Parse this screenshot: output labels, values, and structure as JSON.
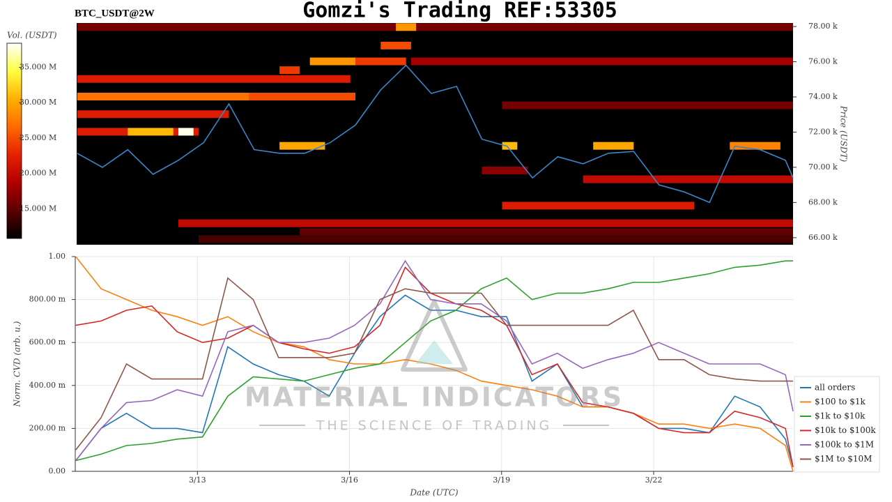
{
  "title": "Gomzi's Trading REF:53305",
  "watermark": {
    "title": "MATERIAL INDICATORS",
    "subtitle": "THE SCIENCE OF TRADING"
  },
  "chart_data": [
    {
      "type": "heatmap",
      "title": "BTC_USDT@2W",
      "ylabel": "Price (USDT)",
      "colorbar_label": "Vol. (USDT)",
      "background": "#000000",
      "xlim": [
        10.59,
        24.75
      ],
      "ylim": [
        65600,
        78200
      ],
      "yticks": [
        {
          "value": 66000,
          "label": "66.00 k"
        },
        {
          "value": 68000,
          "label": "68.00 k"
        },
        {
          "value": 70000,
          "label": "70.00 k"
        },
        {
          "value": 72000,
          "label": "72.00 k"
        },
        {
          "value": 74000,
          "label": "74.00 k"
        },
        {
          "value": 76000,
          "label": "76.00 k"
        },
        {
          "value": 78000,
          "label": "78.00 k"
        }
      ],
      "clim": [
        10800000,
        38400000
      ],
      "cticks": [
        {
          "value": 15000000,
          "label": "15.000 M"
        },
        {
          "value": 20000000,
          "label": "20.000 M"
        },
        {
          "value": 25000000,
          "label": "25.000 M"
        },
        {
          "value": 30000000,
          "label": "30.000 M"
        },
        {
          "value": 35000000,
          "label": "35.000 M"
        }
      ],
      "colormap": [
        "#000000",
        "#5a0000",
        "#b00000",
        "#e62000",
        "#ff6a00",
        "#ffb000",
        "#ffff40",
        "#ffffff"
      ],
      "bands": [
        {
          "price": 77950,
          "x": [
            10.6,
            24.75
          ],
          "volume": 16000000
        },
        {
          "price": 77950,
          "x": [
            16.9,
            17.3
          ],
          "volume": 29000000
        },
        {
          "price": 76900,
          "x": [
            16.6,
            17.2
          ],
          "volume": 25000000
        },
        {
          "price": 76000,
          "x": [
            15.2,
            16.1
          ],
          "volume": 29000000
        },
        {
          "price": 76000,
          "x": [
            16.1,
            17.1
          ],
          "volume": 24000000
        },
        {
          "price": 76000,
          "x": [
            17.2,
            24.75
          ],
          "volume": 18000000
        },
        {
          "price": 75500,
          "x": [
            14.6,
            15.0
          ],
          "volume": 24000000
        },
        {
          "price": 75000,
          "x": [
            10.6,
            16.0
          ],
          "volume": 22000000
        },
        {
          "price": 74000,
          "x": [
            10.6,
            14.0
          ],
          "volume": 27000000
        },
        {
          "price": 74000,
          "x": [
            14.0,
            16.1
          ],
          "volume": 25000000
        },
        {
          "price": 73500,
          "x": [
            19.0,
            24.75
          ],
          "volume": 16000000
        },
        {
          "price": 73000,
          "x": [
            10.6,
            13.6
          ],
          "volume": 22000000
        },
        {
          "price": 72000,
          "x": [
            10.6,
            13.0
          ],
          "volume": 22000000
        },
        {
          "price": 72000,
          "x": [
            11.6,
            12.5
          ],
          "volume": 31000000
        },
        {
          "price": 72000,
          "x": [
            12.6,
            12.9
          ],
          "volume": 38000000
        },
        {
          "price": 71200,
          "x": [
            14.6,
            15.5
          ],
          "volume": 30000000
        },
        {
          "price": 71200,
          "x": [
            19.0,
            19.3
          ],
          "volume": 31000000
        },
        {
          "price": 71200,
          "x": [
            20.8,
            21.6
          ],
          "volume": 30000000
        },
        {
          "price": 71200,
          "x": [
            23.5,
            24.5
          ],
          "volume": 28000000
        },
        {
          "price": 69800,
          "x": [
            18.6,
            19.5
          ],
          "volume": 17000000
        },
        {
          "price": 69300,
          "x": [
            20.6,
            24.75
          ],
          "volume": 20000000
        },
        {
          "price": 67800,
          "x": [
            19.0,
            22.8
          ],
          "volume": 22000000
        },
        {
          "price": 66800,
          "x": [
            12.6,
            24.75
          ],
          "volume": 20000000
        },
        {
          "price": 66300,
          "x": [
            15.0,
            24.75
          ],
          "volume": 15000000
        },
        {
          "price": 65900,
          "x": [
            13.0,
            24.75
          ],
          "volume": 14000000
        }
      ],
      "price": {
        "color": "#3a86c8",
        "x": [
          10.6,
          11.1,
          11.6,
          12.1,
          12.6,
          13.1,
          13.6,
          14.1,
          14.6,
          15.1,
          15.6,
          16.1,
          16.6,
          17.1,
          17.6,
          18.1,
          18.6,
          19.1,
          19.6,
          20.1,
          20.6,
          21.1,
          21.6,
          22.1,
          22.6,
          23.1,
          23.6,
          24.1,
          24.6,
          24.75
        ],
        "values": [
          70800,
          70000,
          71000,
          69600,
          70400,
          71400,
          73600,
          71000,
          70800,
          70800,
          71400,
          72400,
          74400,
          75800,
          74200,
          74600,
          71600,
          71200,
          69400,
          70600,
          70200,
          70800,
          70900,
          69000,
          68600,
          68000,
          71200,
          71000,
          70400,
          69400
        ]
      }
    },
    {
      "type": "line",
      "ylabel": "Norm. CVD (arb. u.)",
      "xlabel": "Date (UTC)",
      "xlim": [
        10.59,
        24.75
      ],
      "ylim": [
        0,
        1
      ],
      "xticks": [
        {
          "value": 13,
          "label": "3/13"
        },
        {
          "value": 16,
          "label": "3/16"
        },
        {
          "value": 19,
          "label": "3/19"
        },
        {
          "value": 22,
          "label": "3/22"
        }
      ],
      "yticks": [
        {
          "value": 0,
          "label": "0.00"
        },
        {
          "value": 0.2,
          "label": "200.00 m"
        },
        {
          "value": 0.4,
          "label": "400.00 m"
        },
        {
          "value": 0.6,
          "label": "600.00 m"
        },
        {
          "value": 0.8,
          "label": "800.00 m"
        },
        {
          "value": 1,
          "label": "1.00"
        }
      ],
      "grid": true,
      "legend": "lower right",
      "x": [
        10.6,
        11.1,
        11.6,
        12.1,
        12.6,
        13.1,
        13.6,
        14.1,
        14.6,
        15.1,
        15.6,
        16.1,
        16.6,
        17.1,
        17.6,
        18.1,
        18.6,
        19.1,
        19.6,
        20.1,
        20.6,
        21.1,
        21.6,
        22.1,
        22.6,
        23.1,
        23.6,
        24.1,
        24.6,
        24.75
      ],
      "series": [
        {
          "name": "all orders",
          "color": "#1f77b4",
          "values": [
            0.05,
            0.2,
            0.27,
            0.2,
            0.2,
            0.18,
            0.58,
            0.5,
            0.45,
            0.42,
            0.35,
            0.55,
            0.72,
            0.82,
            0.75,
            0.75,
            0.72,
            0.72,
            0.42,
            0.5,
            0.3,
            0.3,
            0.27,
            0.2,
            0.2,
            0.18,
            0.35,
            0.3,
            0.15,
            0.02
          ]
        },
        {
          "name": "$100 to $1k",
          "color": "#ff7f0e",
          "values": [
            1.0,
            0.85,
            0.8,
            0.75,
            0.72,
            0.68,
            0.72,
            0.65,
            0.6,
            0.58,
            0.52,
            0.5,
            0.5,
            0.52,
            0.5,
            0.47,
            0.42,
            0.4,
            0.38,
            0.35,
            0.3,
            0.3,
            0.27,
            0.22,
            0.22,
            0.2,
            0.22,
            0.2,
            0.12,
            0.0
          ]
        },
        {
          "name": "$1k to $10k",
          "color": "#2ca02c",
          "values": [
            0.05,
            0.08,
            0.12,
            0.13,
            0.15,
            0.16,
            0.35,
            0.44,
            0.43,
            0.42,
            0.45,
            0.48,
            0.5,
            0.6,
            0.7,
            0.75,
            0.85,
            0.9,
            0.8,
            0.83,
            0.83,
            0.85,
            0.88,
            0.88,
            0.9,
            0.92,
            0.95,
            0.96,
            0.98,
            0.98
          ]
        },
        {
          "name": "$10k to $100k",
          "color": "#d62728",
          "values": [
            0.68,
            0.7,
            0.75,
            0.77,
            0.65,
            0.6,
            0.62,
            0.68,
            0.6,
            0.57,
            0.55,
            0.58,
            0.68,
            0.95,
            0.83,
            0.78,
            0.75,
            0.68,
            0.45,
            0.5,
            0.32,
            0.3,
            0.27,
            0.2,
            0.18,
            0.18,
            0.28,
            0.25,
            0.2,
            0.02
          ]
        },
        {
          "name": "$100k to $1M",
          "color": "#9467bd",
          "values": [
            0.05,
            0.2,
            0.32,
            0.33,
            0.38,
            0.35,
            0.65,
            0.68,
            0.6,
            0.6,
            0.62,
            0.68,
            0.78,
            0.98,
            0.8,
            0.78,
            0.78,
            0.7,
            0.5,
            0.55,
            0.48,
            0.52,
            0.55,
            0.6,
            0.55,
            0.5,
            0.5,
            0.5,
            0.45,
            0.28
          ]
        },
        {
          "name": "$1M to $10M",
          "color": "#8c564b",
          "values": [
            0.1,
            0.25,
            0.5,
            0.43,
            0.43,
            0.43,
            0.9,
            0.8,
            0.53,
            0.53,
            0.53,
            0.55,
            0.8,
            0.85,
            0.83,
            0.83,
            0.83,
            0.68,
            0.68,
            0.68,
            0.68,
            0.68,
            0.75,
            0.52,
            0.52,
            0.45,
            0.43,
            0.42,
            0.42,
            0.42
          ]
        }
      ]
    }
  ]
}
